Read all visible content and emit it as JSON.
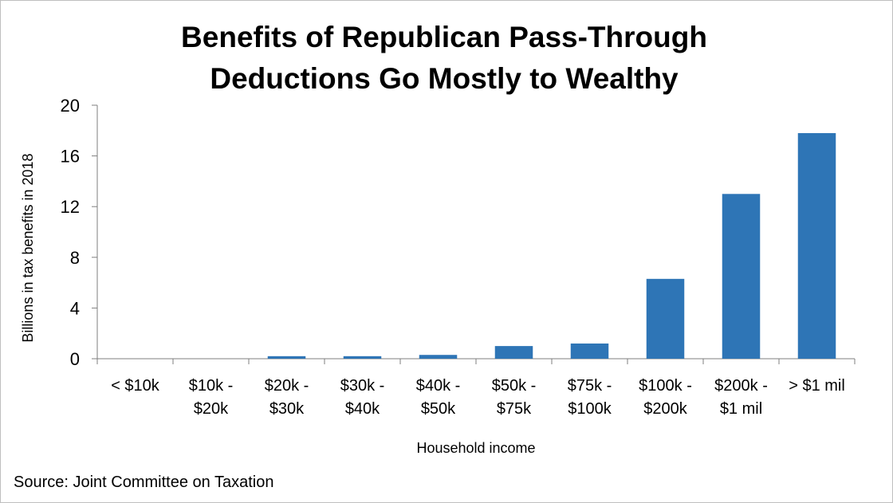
{
  "chart_data": {
    "type": "bar",
    "title_lines": [
      "Benefits of Republican Pass-Through",
      "Deductions Go Mostly to Wealthy"
    ],
    "categories": [
      [
        "< $10k"
      ],
      [
        "$10k -",
        "$20k"
      ],
      [
        "$20k -",
        "$30k"
      ],
      [
        "$30k -",
        "$40k"
      ],
      [
        "$40k -",
        "$50k"
      ],
      [
        "$50k -",
        "$75k"
      ],
      [
        "$75k -",
        "$100k"
      ],
      [
        "$100k -",
        "$200k"
      ],
      [
        "$200k -",
        "$1 mil"
      ],
      [
        "> $1 mil"
      ]
    ],
    "values": [
      0.0,
      0.0,
      0.2,
      0.2,
      0.3,
      1.0,
      1.2,
      6.3,
      13.0,
      17.8
    ],
    "xlabel": "Household income",
    "ylabel": "Billions in tax benefits in 2018",
    "ylim": [
      0,
      20
    ],
    "yticks": [
      "0",
      "4",
      "8",
      "12",
      "16",
      "20"
    ],
    "bar_color": "#2e75b6",
    "grid": false,
    "legend": "none"
  },
  "source": "Source: Joint Committee on Taxation"
}
